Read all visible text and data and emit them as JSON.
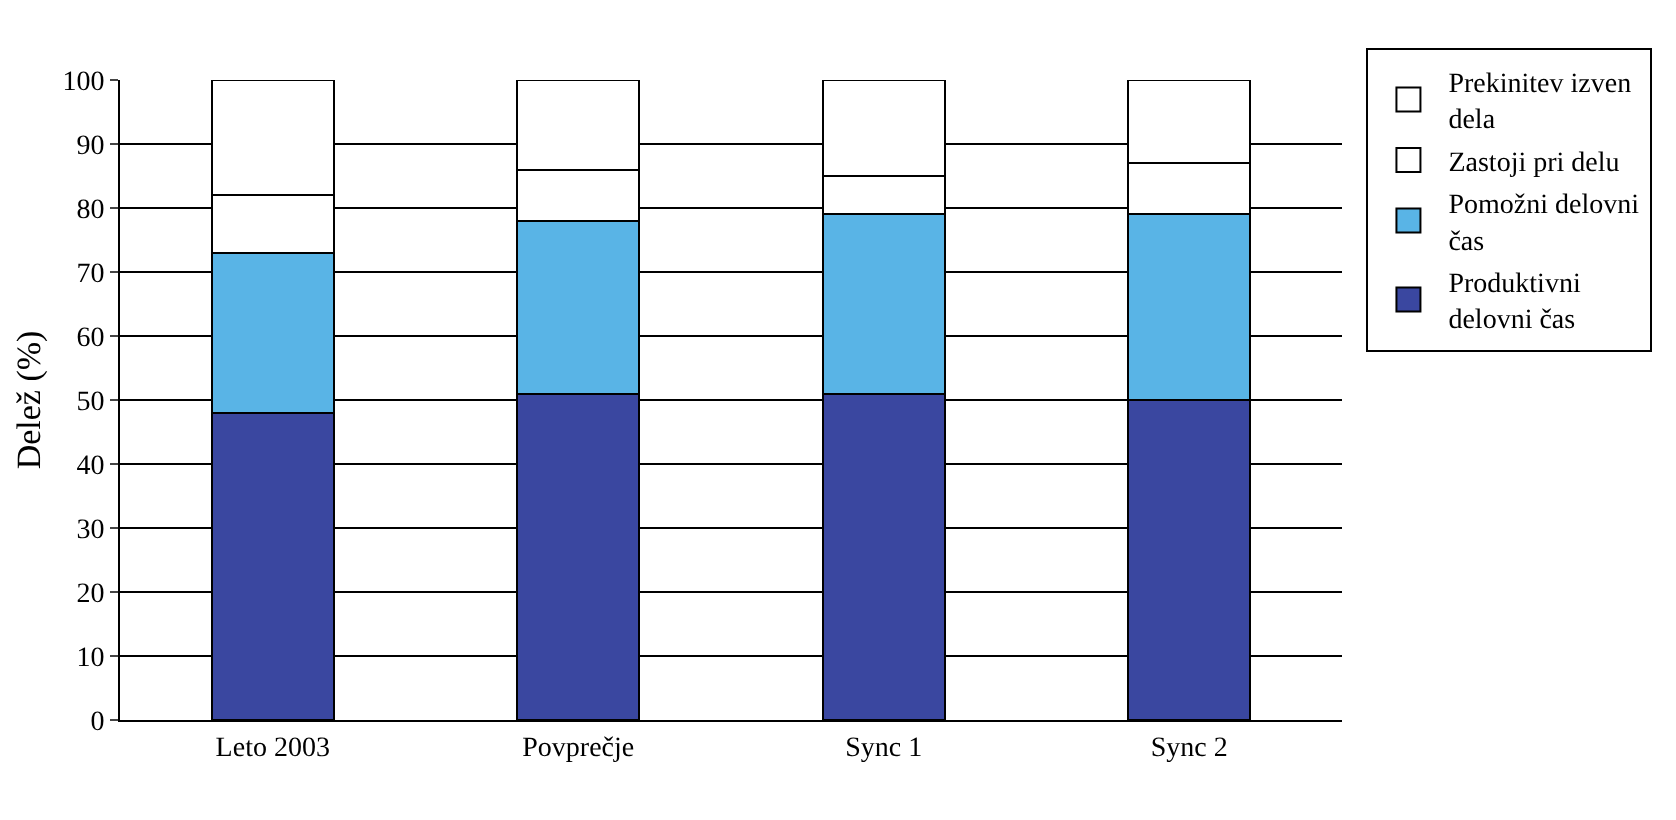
{
  "chart_data": {
    "type": "bar",
    "stacked": true,
    "ylabel": "Delež (%)",
    "categories": [
      "Leto 2003",
      "Povprečje",
      "Sync 1",
      "Sync 2"
    ],
    "series": [
      {
        "name": "Produktivni delovni čas",
        "color": "#3a47a0",
        "values": [
          48,
          51,
          51,
          50
        ]
      },
      {
        "name": "Pomožni delovni čas",
        "color": "#59b4e6",
        "values": [
          25,
          27,
          28,
          29
        ]
      },
      {
        "name": "Zastoji pri delu",
        "color": "#ffffff",
        "values": [
          9,
          8,
          6,
          8
        ]
      },
      {
        "name": "Prekinitev izven dela",
        "color": "#ffffff",
        "values": [
          18,
          14,
          15,
          13
        ]
      }
    ],
    "ylim": [
      0,
      100
    ],
    "yticks": [
      0,
      10,
      20,
      30,
      40,
      50,
      60,
      70,
      80,
      90,
      100
    ],
    "grid": "y",
    "legend": "right"
  }
}
